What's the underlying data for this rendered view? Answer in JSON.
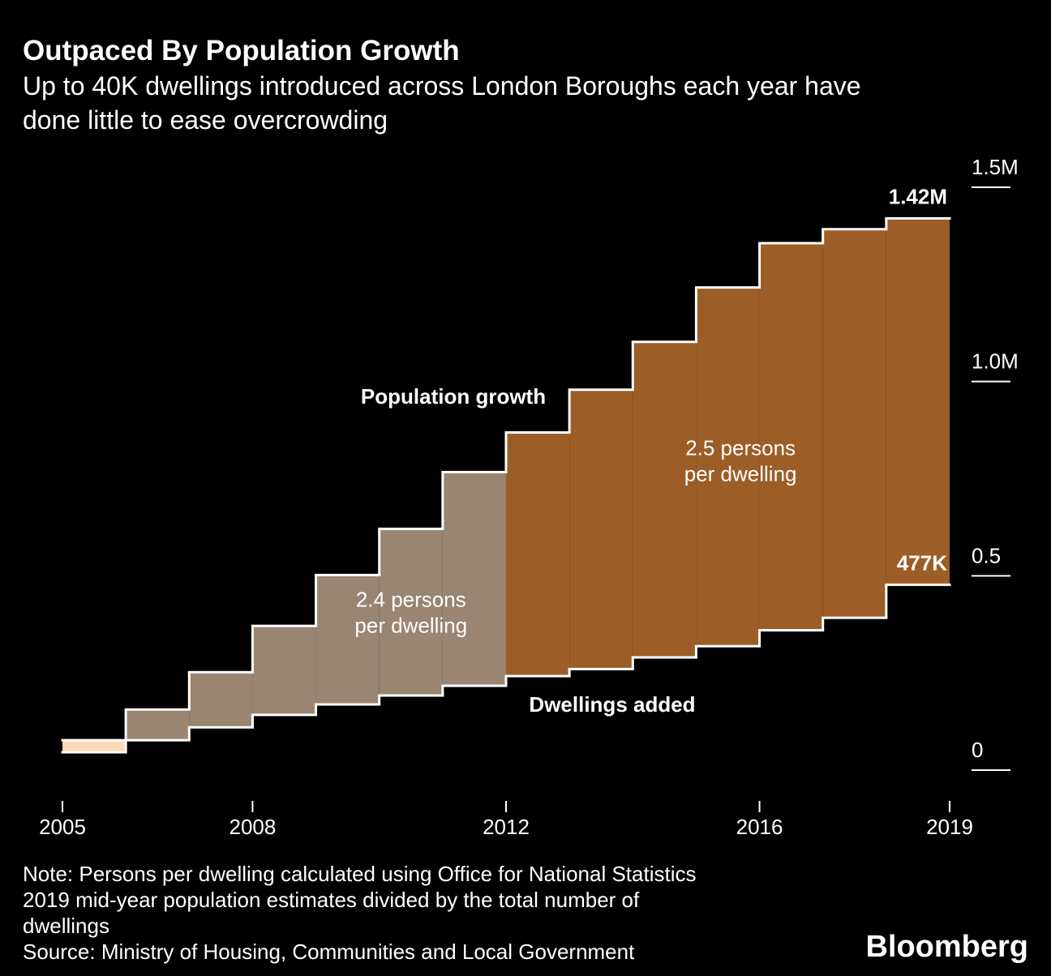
{
  "chart_data": {
    "type": "step-area",
    "title": "Outpaced By Population Growth",
    "subtitle": [
      "Up to 40K dwellings introduced across London Boroughs each year have",
      "done little to ease overcrowding"
    ],
    "x": [
      2005,
      2006,
      2007,
      2008,
      2009,
      2010,
      2011,
      2012,
      2013,
      2014,
      2015,
      2016,
      2017,
      2018
    ],
    "series": [
      {
        "name": "Population growth",
        "color": "#ffffff",
        "values": [
          0.077,
          0.156,
          0.252,
          0.371,
          0.502,
          0.621,
          0.767,
          0.869,
          0.979,
          1.102,
          1.242,
          1.356,
          1.392,
          1.42
        ],
        "value_labels": [
          null,
          null,
          null,
          null,
          null,
          null,
          null,
          null,
          null,
          null,
          null,
          null,
          null,
          "1.42M"
        ]
      },
      {
        "name": "Dwellings added",
        "color": "#ffffff",
        "values": [
          0.046,
          0.077,
          0.11,
          0.142,
          0.169,
          0.192,
          0.217,
          0.242,
          0.26,
          0.29,
          0.319,
          0.36,
          0.392,
          0.477
        ],
        "value_labels": [
          null,
          null,
          null,
          null,
          null,
          null,
          null,
          null,
          null,
          null,
          null,
          null,
          null,
          "477K"
        ]
      }
    ],
    "fill_colors": [
      "#fcd9b8",
      "#9a8572",
      "#9a8572",
      "#9a8572",
      "#9a8572",
      "#9a8572",
      "#9a8572",
      "#9c5d27",
      "#9c5d27",
      "#9c5d27",
      "#9c5d27",
      "#9c5d27",
      "#9c5d27",
      "#9c5d27"
    ],
    "annotations": [
      {
        "lines": [
          "2.4 persons",
          "per dwelling"
        ],
        "x": 2010.5,
        "y": 0.42
      },
      {
        "lines": [
          "2.5 persons",
          "per dwelling"
        ],
        "x": 2015.7,
        "y": 0.81
      }
    ],
    "xlim": [
      2005,
      2019
    ],
    "xticks": [
      2005,
      2008,
      2012,
      2016,
      2019
    ],
    "ylim": [
      0,
      1.5
    ],
    "yticks": [
      0,
      0.5,
      {
        "value": 1.0,
        "label": "1.0M"
      },
      {
        "value": 1.5,
        "label": "1.5M"
      }
    ],
    "notes": [
      "Note: Persons per dwelling calculated using Office for National Statistics",
      "2019 mid-year population estimates divided by the total number of",
      "dwellings",
      "Source: Ministry of Housing, Communities and Local Government"
    ],
    "brand": "Bloomberg"
  }
}
